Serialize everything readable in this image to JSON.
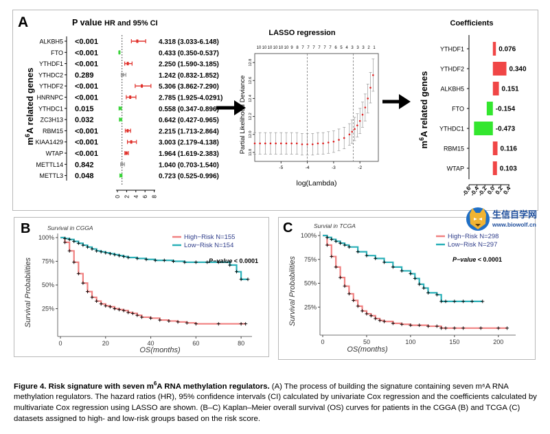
{
  "panel_a": {
    "letter": "A",
    "forest": {
      "title_prefix": "P value ",
      "title_suffix": "HR and 95% CI",
      "y_label_pre": "m",
      "y_label_sup": "6",
      "y_label_post": "A related genes",
      "x_ticks": [
        "0",
        "2",
        "4",
        "6",
        "8"
      ]
    },
    "lasso": {
      "title": "LASSO regression",
      "xlabel": "log(Lambda)",
      "ylabel": "Partial Likelihood Deviance",
      "top_ticks": [
        "10",
        "10",
        "10",
        "10",
        "10",
        "10",
        "9",
        "8",
        "7",
        "7",
        "7",
        "7",
        "7",
        "7",
        "6",
        "5",
        "4",
        "3",
        "3",
        "3",
        "2",
        "1"
      ],
      "x_ticks": [
        "-5",
        "-4",
        "-3",
        "-2"
      ],
      "y_ticks": [
        "11.8",
        "12.0",
        "12.2",
        "12.4",
        "12.6",
        "12.8"
      ]
    },
    "coef": {
      "title": "Coefficients",
      "y_label_pre": "m",
      "y_label_sup": "6",
      "y_label_post": "A related genes",
      "x_ticks": [
        "-0.6",
        "-0.4",
        "-0.2",
        "0.0",
        "0.2",
        "0.4"
      ]
    }
  },
  "panel_b": {
    "letter": "B",
    "subtitle": "Survival in CGGA",
    "legend": [
      "High−Risk",
      "Low−Risk"
    ],
    "legend_n": [
      "N=155",
      "N=154"
    ],
    "pvalue_label": "P−value",
    "pvalue_text": " < 0.0001",
    "xlabel": "OS(months)",
    "ylabel": "Survival Probabilities",
    "x_ticks": [
      "0",
      "20",
      "40",
      "60",
      "80"
    ],
    "y_ticks": [
      "25%",
      "50%",
      "75%",
      "100%"
    ]
  },
  "panel_c": {
    "letter": "C",
    "subtitle": "Survial in TCGA",
    "legend": [
      "High−Risk",
      "Low−Risk"
    ],
    "legend_n": [
      "N=298",
      "N=297"
    ],
    "pvalue_label": "P−value",
    "pvalue_text": " < 0.0001",
    "xlabel": "OS(months)",
    "ylabel": "Survival Probabilities",
    "x_ticks": [
      "0",
      "50",
      "100",
      "150",
      "200"
    ],
    "y_ticks": [
      "25%",
      "50%",
      "75%",
      "100%"
    ]
  },
  "watermark": {
    "line1": "生信自学网",
    "line2": "www.biowolf.cn"
  },
  "caption": {
    "label": "Figure 4. Risk signature with seven m",
    "label_sup": "6",
    "label_end": "A RNA methylation regulators.",
    "body": " (A) The process of building the signature containing seven m⁶A RNA methylation regulators. The hazard ratios (HR), 95% confidence intervals (CI) calculated by univariate Cox regression and the coefficients calculated by multivariate Cox regression using LASSO are shown. (B–C) Kaplan–Meier overall survival (OS) curves for patients in the CGGA (B) and TCGA (C) datasets assigned to high- and low-risk groups based on the risk score."
  },
  "chart_data": [
    {
      "type": "forest",
      "ylabel": "m6A related genes",
      "genes": [
        "ALKBH5",
        "FTO",
        "YTHDF1",
        "YTHDC2",
        "YTHDF2",
        "HNRNPC",
        "YTHDC1",
        "ZC3H13",
        "RBM15",
        "KIAA1429",
        "WTAP",
        "METTL14",
        "METTL3"
      ],
      "pvalues": [
        "<0.001",
        "<0.001",
        "<0.001",
        "0.289",
        "<0.001",
        "<0.001",
        "0.015",
        "0.032",
        "<0.001",
        "<0.001",
        "<0.001",
        "0.842",
        "0.048"
      ],
      "hr": [
        4.318,
        0.433,
        2.25,
        1.242,
        5.306,
        2.785,
        0.558,
        0.642,
        2.215,
        3.003,
        1.964,
        1.04,
        0.723
      ],
      "ci_low": [
        3.033,
        0.35,
        1.59,
        0.832,
        3.862,
        1.925,
        0.347,
        0.427,
        1.713,
        2.179,
        1.619,
        0.703,
        0.525
      ],
      "ci_high": [
        6.148,
        0.537,
        3.185,
        1.852,
        7.29,
        4.0291,
        0.896,
        0.965,
        2.864,
        4.138,
        2.383,
        1.54,
        0.996
      ],
      "labels": [
        "4.318 (3.033-6.148)",
        "0.433 (0.350-0.537)",
        "2.250 (1.590-3.185)",
        "1.242 (0.832-1.852)",
        "5.306 (3.862-7.290)",
        "2.785 (1.925-4.0291)",
        "0.558 (0.347-0.896)",
        "0.642 (0.427-0.965)",
        "2.215 (1.713-2.864)",
        "3.003 (2.179-4.138)",
        "1.964 (1.619-2.383)",
        "1.040 (0.703-1.540)",
        "0.723 (0.525-0.996)"
      ],
      "colors": [
        "red",
        "green",
        "red",
        "gray",
        "red",
        "red",
        "green",
        "green",
        "red",
        "red",
        "red",
        "gray",
        "green"
      ],
      "xlim": [
        0,
        8
      ]
    },
    {
      "type": "line",
      "title": "LASSO regression",
      "xlabel": "log(Lambda)",
      "ylabel": "Partial Likelihood Deviance",
      "xlim": [
        -6,
        -1.3
      ],
      "ylim": [
        11.7,
        12.9
      ],
      "lambda_lines": [
        -4.0,
        -2.25
      ],
      "x": [
        -6.0,
        -5.8,
        -5.6,
        -5.4,
        -5.2,
        -5.0,
        -4.8,
        -4.6,
        -4.4,
        -4.2,
        -4.0,
        -3.8,
        -3.6,
        -3.4,
        -3.2,
        -3.0,
        -2.8,
        -2.6,
        -2.4,
        -2.3,
        -2.2,
        -2.1,
        -2.0,
        -1.9,
        -1.8,
        -1.7,
        -1.6,
        -1.5
      ],
      "y": [
        11.9,
        11.9,
        11.9,
        11.9,
        11.9,
        11.9,
        11.9,
        11.9,
        11.9,
        11.89,
        11.89,
        11.89,
        11.9,
        11.9,
        11.91,
        11.92,
        11.94,
        11.96,
        12.0,
        12.03,
        12.06,
        12.1,
        12.15,
        12.22,
        12.3,
        12.4,
        12.52,
        12.66
      ],
      "err": [
        0.12,
        0.12,
        0.12,
        0.12,
        0.12,
        0.12,
        0.12,
        0.12,
        0.12,
        0.12,
        0.12,
        0.12,
        0.12,
        0.12,
        0.12,
        0.12,
        0.12,
        0.12,
        0.12,
        0.13,
        0.13,
        0.13,
        0.14,
        0.14,
        0.15,
        0.16,
        0.17,
        0.18
      ]
    },
    {
      "type": "bar",
      "title": "Coefficients",
      "categories": [
        "YTHDF1",
        "YTHDF2",
        "ALKBH5",
        "FTO",
        "YTHDC1",
        "RBM15",
        "WTAP"
      ],
      "values": [
        0.076,
        0.34,
        0.151,
        -0.154,
        -0.473,
        0.116,
        0.103
      ],
      "value_labels": [
        "0.076",
        "0.340",
        "0.151",
        "-0.154",
        "-0.473",
        "0.116",
        "0.103"
      ],
      "xlim": [
        -0.6,
        0.4
      ],
      "colors": {
        "positive": "#f04646",
        "negative": "#33e62e"
      }
    },
    {
      "type": "line",
      "title": "Survival in CGGA",
      "xlabel": "OS(months)",
      "ylabel": "Survival Probabilities",
      "xlim": [
        0,
        83
      ],
      "ylim": [
        0,
        1
      ],
      "series": [
        {
          "name": "High−Risk N=155",
          "color": "#f08080",
          "x": [
            0,
            2,
            4,
            6,
            8,
            10,
            12,
            14,
            16,
            18,
            20,
            22,
            24,
            26,
            28,
            30,
            32,
            34,
            36,
            40,
            44,
            48,
            52,
            56,
            60,
            70,
            80,
            82
          ],
          "y": [
            1.0,
            0.95,
            0.86,
            0.74,
            0.62,
            0.52,
            0.43,
            0.37,
            0.33,
            0.3,
            0.28,
            0.27,
            0.25,
            0.24,
            0.23,
            0.21,
            0.2,
            0.18,
            0.16,
            0.15,
            0.13,
            0.12,
            0.11,
            0.1,
            0.09,
            0.09,
            0.09,
            0.09
          ]
        },
        {
          "name": "Low−Risk N=154",
          "color": "#2ab0b8",
          "x": [
            0,
            2,
            4,
            6,
            8,
            10,
            12,
            14,
            16,
            18,
            20,
            22,
            24,
            26,
            28,
            30,
            34,
            38,
            42,
            46,
            50,
            55,
            60,
            65,
            70,
            75,
            78,
            80,
            83
          ],
          "y": [
            1.0,
            0.99,
            0.98,
            0.96,
            0.94,
            0.92,
            0.9,
            0.88,
            0.86,
            0.85,
            0.84,
            0.83,
            0.82,
            0.81,
            0.8,
            0.79,
            0.78,
            0.77,
            0.76,
            0.76,
            0.75,
            0.74,
            0.74,
            0.74,
            0.74,
            0.71,
            0.64,
            0.56,
            0.56
          ]
        }
      ],
      "annotation": "P−value < 0.0001"
    },
    {
      "type": "line",
      "title": "Survial in TCGA",
      "xlabel": "OS(months)",
      "ylabel": "Survival Probabilities",
      "xlim": [
        0,
        215
      ],
      "ylim": [
        0,
        1
      ],
      "series": [
        {
          "name": "High−Risk N=298",
          "color": "#f08080",
          "x": [
            0,
            5,
            10,
            15,
            20,
            25,
            30,
            35,
            40,
            45,
            50,
            55,
            60,
            65,
            70,
            80,
            90,
            100,
            110,
            120,
            130,
            135,
            140,
            150,
            160,
            180,
            200,
            210
          ],
          "y": [
            1.0,
            0.9,
            0.78,
            0.67,
            0.56,
            0.47,
            0.39,
            0.32,
            0.26,
            0.21,
            0.18,
            0.16,
            0.13,
            0.11,
            0.1,
            0.08,
            0.07,
            0.06,
            0.06,
            0.05,
            0.05,
            0.03,
            0.03,
            0.03,
            0.03,
            0.03,
            0.03,
            0.03
          ]
        },
        {
          "name": "Low−Risk N=297",
          "color": "#2ab0b8",
          "x": [
            0,
            5,
            10,
            15,
            20,
            25,
            30,
            40,
            50,
            60,
            70,
            80,
            90,
            100,
            105,
            110,
            115,
            120,
            130,
            135,
            140,
            150,
            160,
            170,
            182
          ],
          "y": [
            1.0,
            0.98,
            0.96,
            0.94,
            0.92,
            0.9,
            0.88,
            0.83,
            0.79,
            0.76,
            0.72,
            0.67,
            0.63,
            0.6,
            0.55,
            0.49,
            0.45,
            0.4,
            0.38,
            0.31,
            0.31,
            0.31,
            0.31,
            0.31,
            0.31
          ]
        }
      ],
      "annotation": "P−value < 0.0001"
    }
  ]
}
